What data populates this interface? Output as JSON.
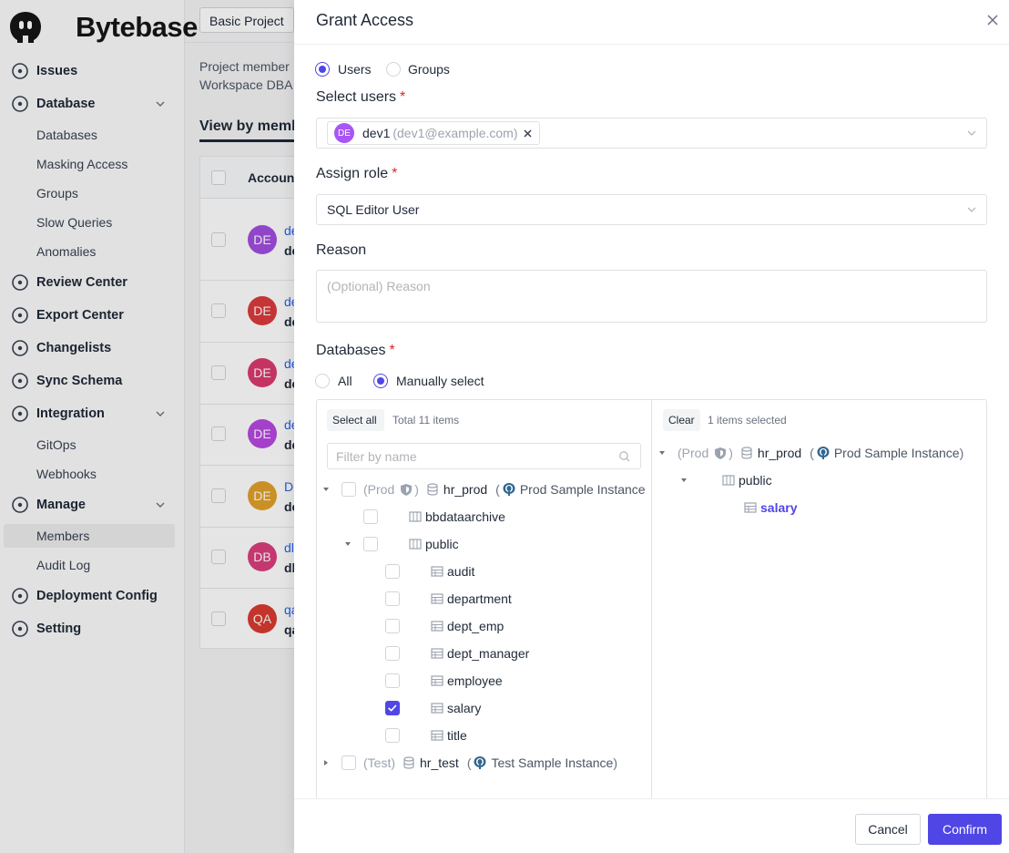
{
  "sidebar": {
    "logo": "Bytebase",
    "nav": [
      {
        "label": "Issues"
      },
      {
        "label": "Database",
        "children": [
          {
            "label": "Databases"
          },
          {
            "label": "Masking Access"
          },
          {
            "label": "Groups"
          },
          {
            "label": "Slow Queries"
          },
          {
            "label": "Anomalies"
          }
        ]
      },
      {
        "label": "Review Center"
      },
      {
        "label": "Export Center"
      },
      {
        "label": "Changelists"
      },
      {
        "label": "Sync Schema"
      },
      {
        "label": "Integration",
        "children": [
          {
            "label": "GitOps"
          },
          {
            "label": "Webhooks"
          }
        ]
      },
      {
        "label": "Manage",
        "children": [
          {
            "label": "Members",
            "active": true
          },
          {
            "label": "Audit Log"
          }
        ]
      },
      {
        "label": "Deployment Config"
      },
      {
        "label": "Setting"
      }
    ]
  },
  "main": {
    "project_button": "Basic Project",
    "description": [
      "Project member",
      "Workspace DBA"
    ],
    "tab": "View by memb",
    "table": {
      "header": "Account",
      "rows": [
        {
          "avatar": "DE",
          "color": "#a24fe0",
          "link": "de",
          "sub": "de"
        },
        {
          "avatar": "DE",
          "color": "#dc3b3b",
          "link": "de",
          "sub": "de"
        },
        {
          "avatar": "DE",
          "color": "#db3a6e",
          "link": "de",
          "sub": "de"
        },
        {
          "avatar": "DE",
          "color": "#b748e0",
          "link": "de",
          "sub": "de"
        },
        {
          "avatar": "DE",
          "color": "#e3a12a",
          "link": "D",
          "sub": "de"
        },
        {
          "avatar": "DB",
          "color": "#db3f7c",
          "link": "dl",
          "sub": "dl"
        },
        {
          "avatar": "QA",
          "color": "#da3a2f",
          "link": "qa",
          "sub": "qa"
        }
      ]
    }
  },
  "drawer": {
    "title": "Grant Access",
    "principal_type": {
      "options": [
        "Users",
        "Groups"
      ],
      "selected": 0
    },
    "select_users": {
      "label": "Select users",
      "required": "*",
      "tags": [
        {
          "avatar": "DE",
          "color": "#a855f7",
          "name": "dev1",
          "email": "(dev1@example.com)"
        }
      ]
    },
    "assign_role": {
      "label": "Assign role",
      "required": "*",
      "value": "SQL Editor User"
    },
    "reason": {
      "label": "Reason",
      "placeholder": "(Optional) Reason"
    },
    "databases": {
      "label": "Databases",
      "required": "*",
      "options": [
        "All",
        "Manually select"
      ],
      "selected": 1,
      "source": {
        "select_all": "Select all",
        "total": "Total 11 items",
        "filter_placeholder": "Filter by name",
        "tree": [
          {
            "env": "(Prod",
            "env_shield": true,
            "env_close": ")",
            "name": "hr_prod",
            "paren": "(",
            "instance": "Prod Sample Instance",
            "children": [
              {
                "name": "bbdataarchive"
              },
              {
                "name": "public",
                "children": [
                  {
                    "name": "audit"
                  },
                  {
                    "name": "department"
                  },
                  {
                    "name": "dept_emp"
                  },
                  {
                    "name": "dept_manager"
                  },
                  {
                    "name": "employee"
                  },
                  {
                    "name": "salary",
                    "checked": true
                  },
                  {
                    "name": "title"
                  }
                ]
              }
            ]
          },
          {
            "env": "(Test)",
            "name": "hr_test",
            "paren": "(",
            "instance": "Test Sample Instance",
            "close": ")",
            "collapsed": true
          }
        ]
      },
      "target": {
        "clear": "Clear",
        "count": "1 items selected",
        "tree": [
          {
            "env": "(Prod",
            "env_shield": true,
            "env_close": ")",
            "name": "hr_prod",
            "paren": "(",
            "instance": "Prod Sample Instance",
            "close": ")",
            "children": [
              {
                "name": "public",
                "children": [
                  {
                    "name": "salary"
                  }
                ]
              }
            ]
          }
        ]
      }
    },
    "footer": {
      "cancel": "Cancel",
      "confirm": "Confirm"
    }
  }
}
